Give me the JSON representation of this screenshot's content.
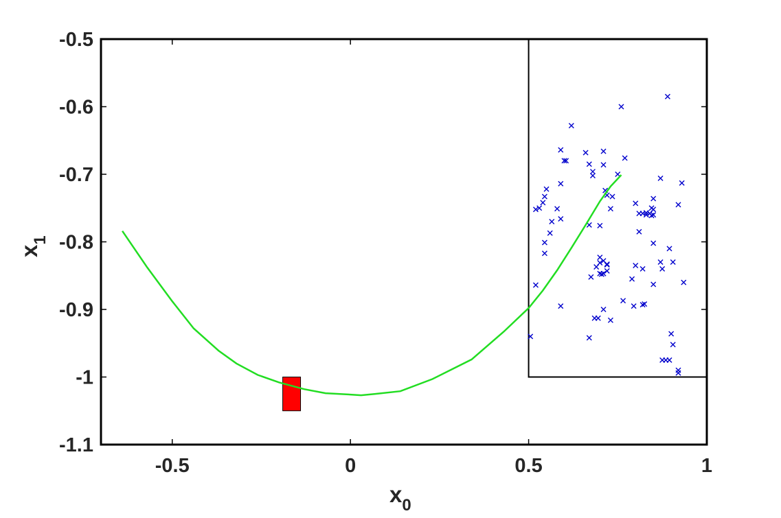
{
  "chart_data": {
    "type": "scatter",
    "xlabel": {
      "base": "x",
      "sub": "0"
    },
    "ylabel": {
      "base": "x",
      "sub": "1"
    },
    "xlim": [
      -0.7,
      1.0
    ],
    "ylim": [
      -1.1,
      -0.5
    ],
    "xticks": [
      -0.5,
      0,
      0.5,
      1
    ],
    "xtick_labels": [
      "-0.5",
      "0",
      "0.5",
      "1"
    ],
    "yticks": [
      -1.1,
      -1.0,
      -0.9,
      -0.8,
      -0.7,
      -0.6,
      -0.5
    ],
    "ytick_labels": [
      "-1.1",
      "-1",
      "-0.9",
      "-0.8",
      "-0.7",
      "-0.6",
      "-0.5"
    ],
    "grid": false,
    "legend": "none",
    "colors": {
      "curve": "#22dd22",
      "points": "#0000cc",
      "target": "#ff0000",
      "region": "#000000"
    },
    "region": {
      "x": [
        0.5,
        1.0
      ],
      "y": [
        -1.0,
        -0.5
      ]
    },
    "target_box": {
      "x": [
        -0.19,
        -0.14
      ],
      "y": [
        -1.05,
        -1.0
      ]
    },
    "curve": {
      "x": [
        -0.64,
        -0.57,
        -0.5,
        -0.44,
        -0.37,
        -0.32,
        -0.26,
        -0.2,
        -0.13,
        -0.07,
        0.0,
        0.03,
        0.07,
        0.14,
        0.23,
        0.34,
        0.43,
        0.5,
        0.54,
        0.58,
        0.62,
        0.66,
        0.7,
        0.73,
        0.76
      ],
      "y": [
        -0.784,
        -0.838,
        -0.888,
        -0.928,
        -0.961,
        -0.98,
        -0.997,
        -1.008,
        -1.018,
        -1.024,
        -1.026,
        -1.027,
        -1.025,
        -1.021,
        -1.003,
        -0.974,
        -0.933,
        -0.898,
        -0.872,
        -0.842,
        -0.809,
        -0.775,
        -0.74,
        -0.718,
        -0.701
      ]
    },
    "points": {
      "x": [
        0.59,
        0.6,
        0.605,
        0.62,
        0.59,
        0.66,
        0.67,
        0.68,
        0.68,
        0.71,
        0.71,
        0.76,
        0.77,
        0.75,
        0.89,
        0.93,
        0.87,
        0.55,
        0.545,
        0.54,
        0.53,
        0.52,
        0.58,
        0.59,
        0.565,
        0.56,
        0.545,
        0.545,
        0.52,
        0.505,
        0.59,
        0.67,
        0.7,
        0.715,
        0.72,
        0.735,
        0.73,
        0.7,
        0.71,
        0.72,
        0.7,
        0.7,
        0.705,
        0.71,
        0.72,
        0.69,
        0.72,
        0.675,
        0.71,
        0.695,
        0.73,
        0.685,
        0.67,
        0.8,
        0.81,
        0.82,
        0.83,
        0.83,
        0.84,
        0.85,
        0.845,
        0.845,
        0.85,
        0.85,
        0.81,
        0.82,
        0.8,
        0.79,
        0.825,
        0.82,
        0.765,
        0.795,
        0.85,
        0.87,
        0.875,
        0.895,
        0.905,
        0.92,
        0.935,
        0.85,
        0.9,
        0.905,
        0.895,
        0.875,
        0.885,
        0.92,
        0.92
      ],
      "y": [
        -0.664,
        -0.68,
        -0.68,
        -0.628,
        -0.714,
        -0.668,
        -0.685,
        -0.702,
        -0.696,
        -0.666,
        -0.686,
        -0.6,
        -0.676,
        -0.7,
        -0.585,
        -0.713,
        -0.706,
        -0.722,
        -0.733,
        -0.742,
        -0.75,
        -0.864,
        -0.751,
        -0.766,
        -0.77,
        -0.787,
        -0.801,
        -0.817,
        -0.752,
        -0.94,
        -0.895,
        -0.775,
        -0.776,
        -0.724,
        -0.731,
        -0.733,
        -0.751,
        -0.823,
        -0.828,
        -0.833,
        -0.831,
        -0.847,
        -0.848,
        -0.847,
        -0.843,
        -0.837,
        -0.834,
        -0.852,
        -0.9,
        -0.913,
        -0.916,
        -0.913,
        -0.942,
        -0.743,
        -0.758,
        -0.758,
        -0.757,
        -0.76,
        -0.758,
        -0.736,
        -0.75,
        -0.761,
        -0.76,
        -0.752,
        -0.785,
        -0.84,
        -0.835,
        -0.855,
        -0.892,
        -0.893,
        -0.887,
        -0.895,
        -0.802,
        -0.83,
        -0.84,
        -0.81,
        -0.83,
        -0.745,
        -0.86,
        -0.863,
        -0.936,
        -0.952,
        -0.975,
        -0.975,
        -0.975,
        -0.99,
        -0.994
      ]
    }
  }
}
